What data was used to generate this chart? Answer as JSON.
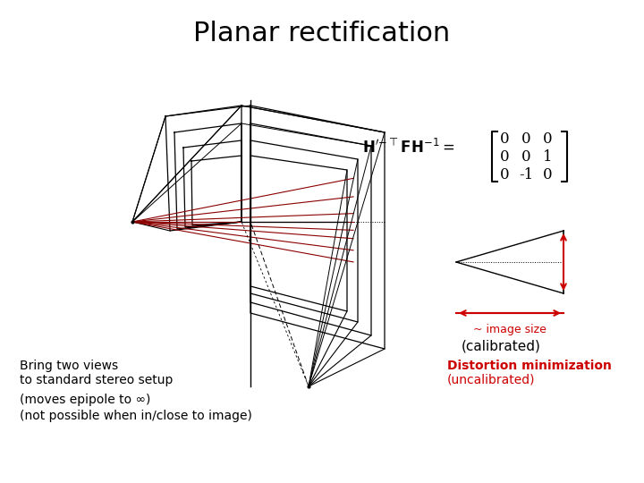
{
  "title": "Planar rectification",
  "title_fontsize": 22,
  "title_fontweight": "normal",
  "bg_color": "#ffffff",
  "matrix_entries": [
    [
      "0",
      "0",
      "0"
    ],
    [
      "0",
      "0",
      "1"
    ],
    [
      "0",
      "-1",
      "0"
    ]
  ],
  "left_label1": "Bring two views",
  "left_label2": "to standard stereo setup",
  "left_label3": "(moves epipole to ∞)",
  "left_label4": "(not possible when in/close to image)",
  "right_label1": "Distortion minimization",
  "right_label2": "(uncalibrated)",
  "right_label_color": "#cc0000",
  "img_size_label": "~ image size",
  "calibrated_label": "(calibrated)",
  "line_color_black": "#000000",
  "line_color_navy": "#00008B",
  "line_color_red": "#8B0000",
  "line_color_red_bright": "#cc0000"
}
